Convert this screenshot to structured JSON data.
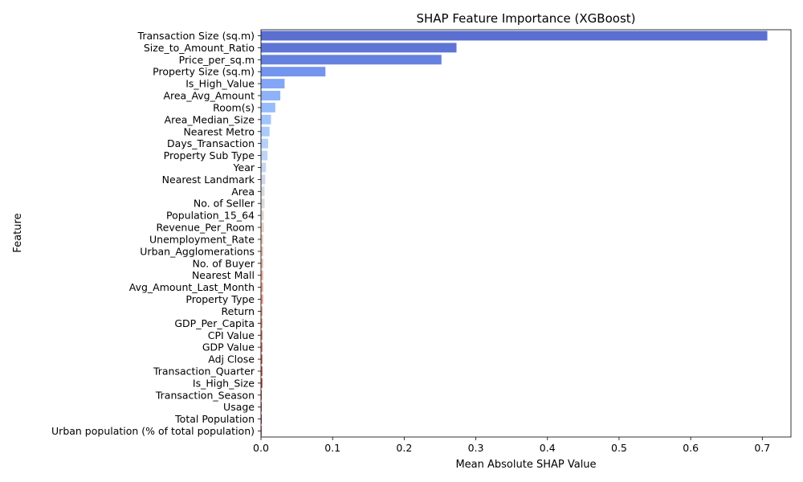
{
  "chart_data": {
    "type": "bar",
    "orientation": "horizontal",
    "title": "SHAP Feature Importance (XGBoost)",
    "xlabel": "Mean Absolute SHAP Value",
    "ylabel": "Feature",
    "xlim": [
      0,
      0.74
    ],
    "xticks": [
      "0.0",
      "0.1",
      "0.2",
      "0.3",
      "0.4",
      "0.5",
      "0.6",
      "0.7"
    ],
    "xtick_values": [
      0,
      0.1,
      0.2,
      0.3,
      0.4,
      0.5,
      0.6,
      0.7
    ],
    "grid": false,
    "palette": "coolwarm",
    "categories": [
      "Transaction Size (sq.m)",
      "Size_to_Amount_Ratio",
      "Price_per_sq.m",
      "Property Size (sq.m)",
      "Is_High_Value",
      "Area_Avg_Amount",
      "Room(s)",
      "Area_Median_Size",
      "Nearest Metro",
      "Days_Transaction",
      "Property Sub Type",
      "Year",
      "Nearest Landmark",
      "Area",
      "No. of Seller",
      "Population_15_64",
      "Revenue_Per_Room",
      "Unemployment_Rate",
      "Urban_Agglomerations",
      "No. of Buyer",
      "Nearest Mall",
      "Avg_Amount_Last_Month",
      "Property Type",
      "Return",
      "GDP_Per_Capita",
      "CPI Value",
      "GDP Value",
      "Adj Close",
      "Transaction_Quarter",
      "Is_High_Size",
      "Transaction_Season",
      "Usage",
      "Total Population",
      "Urban population (% of total population)"
    ],
    "values": [
      0.707,
      0.273,
      0.252,
      0.09,
      0.033,
      0.027,
      0.02,
      0.014,
      0.012,
      0.01,
      0.009,
      0.007,
      0.006,
      0.005,
      0.005,
      0.004,
      0.004,
      0.003,
      0.003,
      0.003,
      0.003,
      0.003,
      0.003,
      0.002,
      0.002,
      0.002,
      0.002,
      0.002,
      0.002,
      0.002,
      0.001,
      0.001,
      0.001,
      0.0005
    ],
    "colors": [
      "#5a6fd0",
      "#5f75d6",
      "#6580dd",
      "#7495ee",
      "#84a6f6",
      "#8db2fa",
      "#97bcfc",
      "#a2c4fd",
      "#abcafc",
      "#b5d0f9",
      "#bfd3f5",
      "#c8d7f0",
      "#cfd9ea",
      "#d6dce3",
      "#dcdcdc",
      "#e2d6d0",
      "#e6d0c6",
      "#eac9bb",
      "#ecc0af",
      "#eeb8a4",
      "#efb09a",
      "#eea68e",
      "#ec9b83",
      "#e99078",
      "#e5856d",
      "#e07a62",
      "#da6e58",
      "#d3624e",
      "#cb5444",
      "#c2463b",
      "#b93833",
      "#af2b2c",
      "#a41d27",
      "#b40426"
    ]
  }
}
